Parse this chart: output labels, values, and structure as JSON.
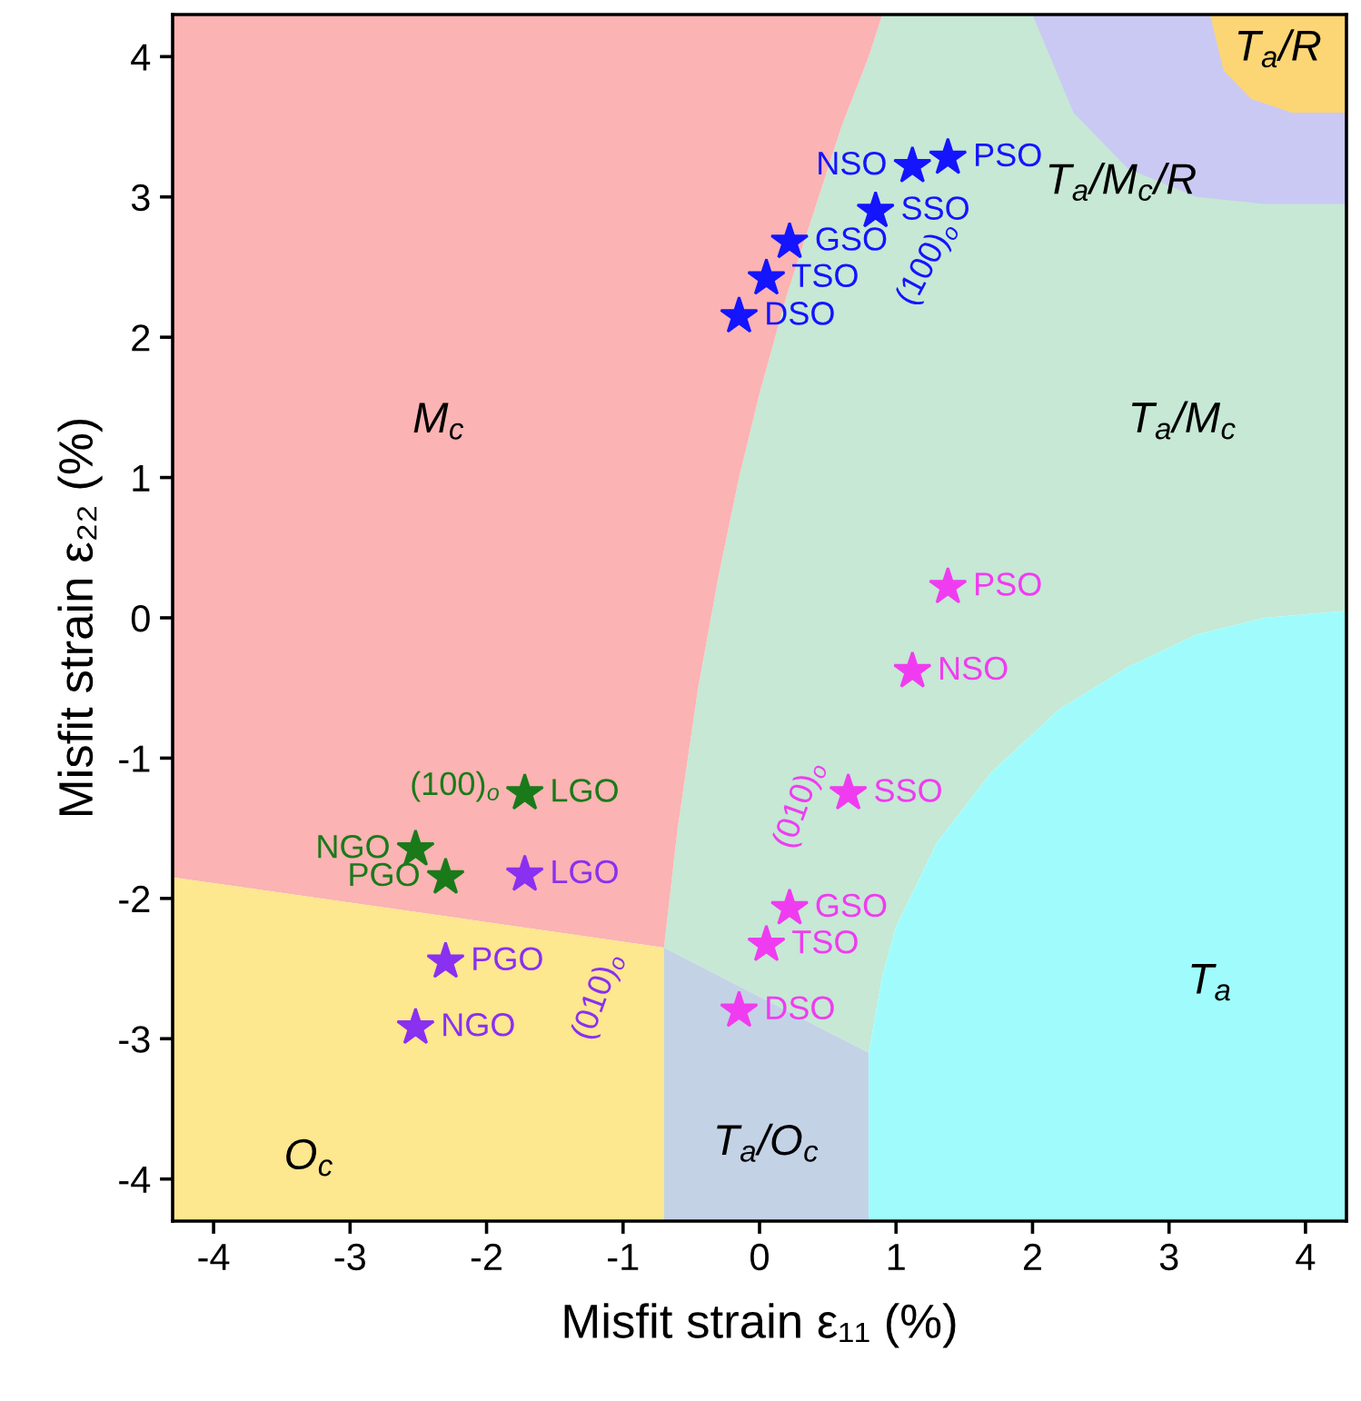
{
  "chart_data": {
    "type": "scatter",
    "xlabel": "Misfit strain ε₁₁ (%)",
    "ylabel": "Misfit strain ε₂₂ (%)",
    "xlim": [
      -4.3,
      4.3
    ],
    "ylim": [
      -4.3,
      4.3
    ],
    "xticks": [
      -4,
      -3,
      -2,
      -1,
      0,
      1,
      2,
      3,
      4
    ],
    "yticks": [
      -4,
      -3,
      -2,
      -1,
      0,
      1,
      2,
      3,
      4
    ],
    "grid": false,
    "legend": false,
    "marker": "star",
    "series": [
      {
        "name": "(100)$_{o}$",
        "color": "#1414ff",
        "x": [
          1.12,
          1.38,
          0.85,
          0.22,
          0.05,
          -0.15
        ],
        "values": [
          3.22,
          3.28,
          2.9,
          2.68,
          2.42,
          2.15
        ],
        "value_labels": [
          "NSO",
          "PSO",
          "SSO",
          "GSO",
          "TSO",
          "DSO"
        ]
      },
      {
        "name": "(010)$_{o}$",
        "color": "#f03cf0",
        "x": [
          1.38,
          1.12,
          0.65,
          0.22,
          0.05,
          -0.15
        ],
        "values": [
          0.22,
          -0.38,
          -1.25,
          -2.07,
          -2.33,
          -2.8
        ],
        "value_labels": [
          "PSO",
          "NSO",
          "SSO",
          "GSO",
          "TSO",
          "DSO"
        ]
      },
      {
        "name": "(100)$_{o}$",
        "color": "#1a7a1a",
        "x": [
          -1.72,
          -2.52,
          -2.3
        ],
        "values": [
          -1.25,
          -1.65,
          -1.85
        ],
        "value_labels": [
          "LGO",
          "NGO",
          "PGO"
        ]
      },
      {
        "name": "(010)$_{o}$",
        "color": "#8a30f0",
        "x": [
          -1.72,
          -2.3,
          -2.52
        ],
        "values": [
          -1.83,
          -2.45,
          -2.92
        ],
        "value_labels": [
          "LGO",
          "PGO",
          "NGO"
        ]
      }
    ],
    "annotations": [
      "M$_{c}$",
      "T$_{a}$/M$_{c}$",
      "T$_{a}$/M$_{c}$/R",
      "T$_{a}$/R",
      "O$_{c}$",
      "T$_{a}$/O$_{c}$",
      "T$_{a}$"
    ]
  }
}
